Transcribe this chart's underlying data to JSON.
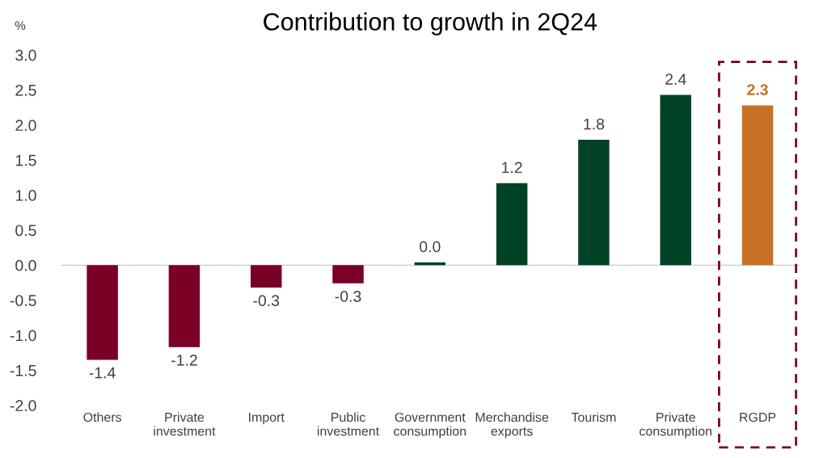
{
  "chart_data": {
    "type": "bar",
    "title": "Contribution to growth in 2Q24",
    "ylabel": "%",
    "categories": [
      "Others",
      "Private\ninvestment",
      "Import",
      "Public\ninvestment",
      "Government\nconsumption",
      "Merchandise\nexports",
      "Tourism",
      "Private\nconsumption",
      "RGDP"
    ],
    "values": [
      -1.35,
      -1.17,
      -0.32,
      -0.26,
      0.04,
      1.17,
      1.79,
      2.43,
      2.28
    ],
    "value_labels": [
      "-1.4",
      "-1.2",
      "-0.3",
      "-0.3",
      "0.0",
      "1.2",
      "1.8",
      "2.4",
      "2.3"
    ],
    "colors": [
      "#7b0025",
      "#7b0025",
      "#7b0025",
      "#7b0025",
      "#004225",
      "#004225",
      "#004225",
      "#004225",
      "#c87025"
    ],
    "ylim": [
      -2.0,
      3.0
    ],
    "yticks": [
      {
        "value": -2.0,
        "label": "-2.0"
      },
      {
        "value": -1.5,
        "label": "-1.5"
      },
      {
        "value": -1.0,
        "label": "-1.0"
      },
      {
        "value": -0.5,
        "label": "-0.5"
      },
      {
        "value": 0.0,
        "label": "0.0"
      },
      {
        "value": 0.5,
        "label": "0.5"
      },
      {
        "value": 1.0,
        "label": "1.0"
      },
      {
        "value": 1.5,
        "label": "1.5"
      },
      {
        "value": 2.0,
        "label": "2.0"
      },
      {
        "value": 2.5,
        "label": "2.5"
      },
      {
        "value": 3.0,
        "label": "3.0"
      }
    ],
    "legend": false
  }
}
